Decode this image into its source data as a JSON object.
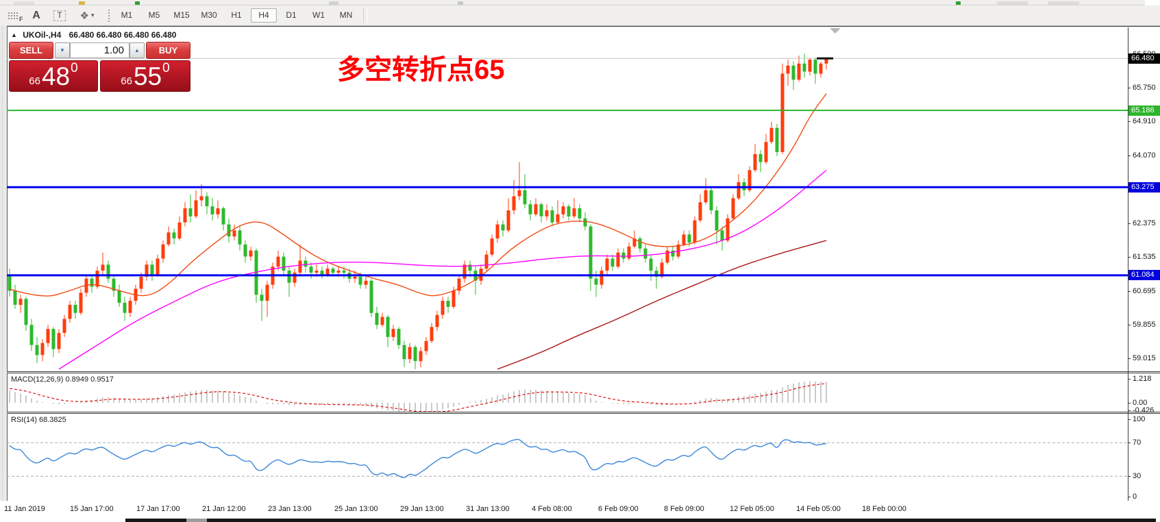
{
  "toolbar": {
    "icons": [
      {
        "name": "indicator-grid-icon",
        "glyph": "F"
      },
      {
        "name": "text-label-icon",
        "glyph": "A"
      },
      {
        "name": "text-box-icon",
        "glyph": "T"
      },
      {
        "name": "shapes-icon",
        "glyph": "❖",
        "caret": "▾"
      }
    ],
    "timeframes": [
      "M1",
      "M5",
      "M15",
      "M30",
      "H1",
      "H4",
      "D1",
      "W1",
      "MN"
    ],
    "selected_timeframe": "H4"
  },
  "header": {
    "collapse_arrow": "▲",
    "symbol_text": "UKOil-,H4",
    "ohlc_text": "66.480 66.480 66.480 66.480"
  },
  "trade_panel": {
    "sell_label": "SELL",
    "buy_label": "BUY",
    "volume": "1.00",
    "spin_down": "▼",
    "spin_up": "▲",
    "sell_price": {
      "small": "66",
      "big": "48",
      "sup": "0"
    },
    "buy_price": {
      "small": "66",
      "big": "55",
      "sup": "0"
    }
  },
  "annotation": {
    "text": "多空转折点65",
    "color": "#fe0000"
  },
  "price_axis": {
    "range": {
      "top": 67.25,
      "bottom": 58.68
    },
    "ticks": [
      {
        "text": "66.590",
        "value": 66.59
      },
      {
        "text": "65.750",
        "value": 65.75
      },
      {
        "text": "64.910",
        "value": 64.91
      },
      {
        "text": "64.070",
        "value": 64.07
      },
      {
        "text": "62.375",
        "value": 62.375
      },
      {
        "text": "61.535",
        "value": 61.535
      },
      {
        "text": "60.695",
        "value": 60.695
      },
      {
        "text": "59.855",
        "value": 59.855
      },
      {
        "text": "59.015",
        "value": 59.015
      }
    ],
    "badges": [
      {
        "text": "66.480",
        "value": 66.48,
        "bg": "#000000"
      },
      {
        "text": "65.186",
        "value": 65.186,
        "bg": "#2db52d"
      },
      {
        "text": "63.275",
        "value": 63.275,
        "bg": "#0000dd"
      },
      {
        "text": "61.084",
        "value": 61.084,
        "bg": "#0000dd"
      }
    ]
  },
  "macd_panel": {
    "label": "MACD(12,26,9) 0.8949 0.9517",
    "axis": [
      {
        "text": "1.218",
        "value": 1.218
      },
      {
        "text": "0.00",
        "value": 0
      },
      {
        "text": "-0.426",
        "value": -0.426
      }
    ]
  },
  "rsi_panel": {
    "label": "RSI(14) 68.3825",
    "axis": [
      {
        "text": "100",
        "value": 100
      },
      {
        "text": "70",
        "value": 70
      },
      {
        "text": "30",
        "value": 30
      },
      {
        "text": "0",
        "value": 0
      }
    ],
    "dashed_levels": [
      70,
      30
    ]
  },
  "time_axis": {
    "labels": [
      "11 Jan 2019",
      "15 Jan 17:00",
      "17 Jan 17:00",
      "21 Jan 12:00",
      "23 Jan 13:00",
      "25 Jan 13:00",
      "29 Jan 13:00",
      "31 Jan 13:00",
      "4 Feb 08:00",
      "6 Feb 09:00",
      "8 Feb 09:00",
      "12 Feb 05:00",
      "14 Feb 05:00",
      "18 Feb 00:00"
    ]
  },
  "chart_data": {
    "type": "candlestick",
    "title": "UKOil- H4",
    "symbol": "UKOil-",
    "timeframe": "H4",
    "up_color": "#ff3d0d",
    "down_color": "#2db92d",
    "current_price": 66.48,
    "ylim": [
      58.68,
      67.25
    ],
    "grid": false,
    "candles": [
      [
        61.1,
        61.25,
        60.55,
        60.7
      ],
      [
        60.7,
        60.85,
        60.25,
        60.35
      ],
      [
        60.35,
        60.6,
        60.15,
        60.5
      ],
      [
        60.5,
        60.55,
        59.7,
        59.85
      ],
      [
        59.85,
        60.0,
        59.2,
        59.35
      ],
      [
        59.35,
        59.55,
        58.9,
        59.1
      ],
      [
        59.1,
        59.5,
        58.95,
        59.4
      ],
      [
        59.4,
        59.85,
        59.3,
        59.75
      ],
      [
        59.75,
        59.8,
        59.05,
        59.25
      ],
      [
        59.25,
        59.75,
        59.15,
        59.65
      ],
      [
        59.65,
        60.1,
        59.55,
        60.0
      ],
      [
        60.0,
        60.45,
        59.9,
        60.35
      ],
      [
        60.35,
        60.45,
        60.0,
        60.15
      ],
      [
        60.15,
        60.75,
        60.1,
        60.65
      ],
      [
        60.65,
        61.1,
        60.55,
        61.0
      ],
      [
        61.0,
        61.1,
        60.65,
        60.8
      ],
      [
        60.8,
        61.3,
        60.75,
        61.2
      ],
      [
        61.2,
        61.65,
        61.1,
        61.35
      ],
      [
        61.35,
        61.45,
        60.9,
        61.0
      ],
      [
        61.0,
        61.1,
        60.55,
        60.7
      ],
      [
        60.7,
        60.85,
        60.3,
        60.4
      ],
      [
        60.4,
        60.55,
        59.95,
        60.15
      ],
      [
        60.15,
        60.55,
        60.05,
        60.45
      ],
      [
        60.45,
        60.85,
        60.35,
        60.75
      ],
      [
        60.75,
        61.15,
        60.65,
        61.05
      ],
      [
        61.05,
        61.45,
        60.95,
        61.35
      ],
      [
        61.35,
        61.45,
        60.95,
        61.1
      ],
      [
        61.1,
        61.6,
        61.05,
        61.5
      ],
      [
        61.5,
        61.95,
        61.4,
        61.85
      ],
      [
        61.85,
        62.3,
        61.8,
        62.15
      ],
      [
        62.15,
        62.25,
        61.85,
        62.0
      ],
      [
        62.0,
        62.55,
        61.95,
        62.4
      ],
      [
        62.4,
        62.9,
        62.3,
        62.75
      ],
      [
        62.75,
        63.1,
        62.4,
        62.55
      ],
      [
        62.55,
        63.2,
        62.5,
        62.95
      ],
      [
        62.95,
        63.35,
        62.8,
        63.05
      ],
      [
        63.05,
        63.15,
        62.6,
        62.8
      ],
      [
        62.8,
        63.0,
        62.45,
        62.6
      ],
      [
        62.6,
        62.95,
        62.5,
        62.75
      ],
      [
        62.75,
        62.8,
        62.2,
        62.35
      ],
      [
        62.35,
        62.5,
        61.9,
        62.05
      ],
      [
        62.05,
        62.35,
        61.95,
        62.2
      ],
      [
        62.2,
        62.3,
        61.7,
        61.85
      ],
      [
        61.85,
        61.95,
        61.4,
        61.55
      ],
      [
        61.55,
        61.8,
        61.45,
        61.7
      ],
      [
        61.7,
        61.75,
        60.4,
        60.6
      ],
      [
        60.6,
        60.75,
        59.95,
        60.45
      ],
      [
        60.45,
        60.95,
        60.05,
        60.85
      ],
      [
        60.85,
        61.4,
        60.75,
        61.3
      ],
      [
        61.3,
        61.7,
        61.2,
        61.55
      ],
      [
        61.55,
        61.65,
        61.1,
        61.2
      ],
      [
        61.2,
        61.3,
        60.55,
        60.9
      ],
      [
        60.9,
        61.25,
        60.8,
        61.15
      ],
      [
        61.15,
        61.85,
        61.1,
        61.45
      ],
      [
        61.45,
        61.55,
        61.15,
        61.3
      ],
      [
        61.3,
        61.4,
        61.0,
        61.15
      ],
      [
        61.15,
        61.35,
        61.05,
        61.2
      ],
      [
        61.2,
        61.3,
        61.0,
        61.1
      ],
      [
        61.1,
        61.35,
        61.05,
        61.25
      ],
      [
        61.25,
        61.3,
        61.05,
        61.15
      ],
      [
        61.15,
        61.3,
        61.05,
        61.2
      ],
      [
        61.2,
        61.3,
        61.0,
        61.15
      ],
      [
        61.15,
        61.25,
        60.9,
        61.0
      ],
      [
        61.0,
        61.2,
        60.9,
        61.05
      ],
      [
        61.05,
        61.15,
        60.75,
        60.85
      ],
      [
        60.85,
        61.05,
        60.75,
        60.95
      ],
      [
        60.95,
        61.0,
        60.05,
        60.15
      ],
      [
        60.15,
        60.3,
        59.75,
        59.85
      ],
      [
        59.85,
        60.15,
        59.8,
        60.05
      ],
      [
        60.05,
        60.1,
        59.3,
        59.55
      ],
      [
        59.55,
        59.85,
        59.45,
        59.75
      ],
      [
        59.75,
        59.8,
        59.25,
        59.35
      ],
      [
        59.35,
        59.45,
        58.8,
        59.0
      ],
      [
        59.0,
        59.4,
        58.9,
        59.3
      ],
      [
        59.3,
        59.35,
        58.75,
        58.95
      ],
      [
        58.95,
        59.3,
        58.8,
        59.2
      ],
      [
        59.2,
        59.55,
        59.1,
        59.45
      ],
      [
        59.45,
        59.9,
        59.4,
        59.8
      ],
      [
        59.8,
        60.2,
        59.7,
        60.1
      ],
      [
        60.1,
        60.55,
        60.0,
        60.45
      ],
      [
        60.45,
        60.55,
        60.15,
        60.3
      ],
      [
        60.3,
        60.8,
        60.25,
        60.7
      ],
      [
        60.7,
        61.1,
        60.6,
        61.0
      ],
      [
        61.0,
        61.45,
        60.9,
        61.35
      ],
      [
        61.35,
        61.45,
        61.05,
        61.2
      ],
      [
        61.2,
        61.3,
        60.6,
        60.95
      ],
      [
        60.95,
        61.35,
        60.85,
        61.25
      ],
      [
        61.25,
        61.7,
        61.2,
        61.6
      ],
      [
        61.6,
        62.1,
        61.55,
        62.0
      ],
      [
        62.0,
        62.45,
        61.9,
        62.35
      ],
      [
        62.35,
        62.45,
        62.05,
        62.2
      ],
      [
        62.2,
        63.0,
        62.15,
        62.7
      ],
      [
        62.7,
        63.45,
        62.6,
        63.05
      ],
      [
        63.05,
        63.9,
        62.95,
        63.2
      ],
      [
        63.2,
        63.6,
        62.75,
        62.85
      ],
      [
        62.85,
        62.95,
        62.45,
        62.6
      ],
      [
        62.6,
        63.0,
        62.55,
        62.85
      ],
      [
        62.85,
        62.9,
        62.4,
        62.55
      ],
      [
        62.55,
        62.85,
        62.45,
        62.7
      ],
      [
        62.7,
        62.8,
        62.3,
        62.4
      ],
      [
        62.4,
        62.95,
        62.35,
        62.6
      ],
      [
        62.6,
        62.9,
        62.5,
        62.8
      ],
      [
        62.8,
        62.85,
        62.45,
        62.55
      ],
      [
        62.55,
        63.0,
        62.5,
        62.75
      ],
      [
        62.75,
        62.85,
        62.4,
        62.5
      ],
      [
        62.5,
        62.65,
        62.2,
        62.3
      ],
      [
        62.3,
        62.35,
        60.7,
        61.0
      ],
      [
        61.0,
        61.2,
        60.55,
        60.85
      ],
      [
        60.85,
        61.3,
        60.75,
        61.2
      ],
      [
        61.2,
        61.6,
        61.1,
        61.5
      ],
      [
        61.5,
        61.6,
        61.2,
        61.3
      ],
      [
        61.3,
        61.75,
        61.25,
        61.65
      ],
      [
        61.65,
        61.75,
        61.4,
        61.5
      ],
      [
        61.5,
        61.9,
        61.45,
        61.8
      ],
      [
        61.8,
        62.2,
        61.75,
        62.0
      ],
      [
        62.0,
        62.05,
        61.65,
        61.75
      ],
      [
        61.75,
        61.85,
        61.4,
        61.5
      ],
      [
        61.5,
        61.6,
        60.95,
        61.2
      ],
      [
        61.2,
        61.3,
        60.75,
        61.05
      ],
      [
        61.05,
        61.5,
        61.0,
        61.4
      ],
      [
        61.4,
        61.8,
        61.35,
        61.7
      ],
      [
        61.7,
        61.8,
        61.45,
        61.55
      ],
      [
        61.55,
        61.95,
        61.5,
        61.85
      ],
      [
        61.85,
        62.2,
        61.8,
        62.1
      ],
      [
        62.1,
        62.2,
        61.8,
        61.9
      ],
      [
        61.9,
        62.55,
        61.85,
        62.45
      ],
      [
        62.45,
        63.1,
        62.4,
        62.9
      ],
      [
        62.9,
        63.5,
        62.85,
        63.2
      ],
      [
        63.2,
        63.3,
        62.6,
        62.7
      ],
      [
        62.7,
        62.8,
        61.85,
        62.2
      ],
      [
        62.2,
        62.3,
        61.7,
        61.95
      ],
      [
        61.95,
        62.6,
        61.9,
        62.5
      ],
      [
        62.5,
        63.1,
        62.45,
        63.0
      ],
      [
        63.0,
        63.6,
        62.95,
        63.4
      ],
      [
        63.4,
        63.5,
        63.05,
        63.2
      ],
      [
        63.2,
        63.8,
        63.15,
        63.7
      ],
      [
        63.7,
        64.35,
        63.65,
        64.1
      ],
      [
        64.1,
        64.2,
        63.65,
        63.9
      ],
      [
        63.9,
        64.6,
        63.85,
        64.4
      ],
      [
        64.4,
        64.9,
        64.35,
        64.75
      ],
      [
        64.75,
        64.85,
        64.05,
        64.15
      ],
      [
        64.15,
        66.35,
        64.1,
        66.1
      ],
      [
        66.1,
        66.45,
        65.8,
        66.3
      ],
      [
        66.3,
        66.4,
        65.7,
        65.95
      ],
      [
        65.95,
        66.55,
        65.9,
        66.35
      ],
      [
        66.35,
        66.6,
        66.0,
        66.15
      ],
      [
        66.15,
        66.5,
        66.05,
        66.45
      ],
      [
        66.45,
        66.5,
        65.85,
        66.1
      ],
      [
        66.1,
        66.4,
        66.0,
        66.35
      ],
      [
        66.35,
        66.5,
        66.2,
        66.48
      ]
    ],
    "hlines": [
      {
        "price": 65.186,
        "color": "#2db52d",
        "width": 2
      },
      {
        "price": 63.275,
        "color": "#0000ee",
        "width": 3
      },
      {
        "price": 61.084,
        "color": "#0000ee",
        "width": 3
      }
    ],
    "moving_averages": [
      {
        "name": "fast-ma",
        "color": "#f04a12",
        "width": 1.4,
        "points": [
          [
            0,
            60.74
          ],
          [
            6,
            60.5
          ],
          [
            11,
            60.7
          ],
          [
            15,
            60.9
          ],
          [
            20,
            60.7
          ],
          [
            25,
            60.52
          ],
          [
            29,
            60.85
          ],
          [
            33,
            61.4
          ],
          [
            38,
            61.95
          ],
          [
            42,
            62.35
          ],
          [
            46,
            62.45
          ],
          [
            50,
            62.1
          ],
          [
            54,
            61.7
          ],
          [
            58,
            61.4
          ],
          [
            63,
            61.15
          ],
          [
            67,
            60.98
          ],
          [
            71,
            60.85
          ],
          [
            75,
            60.62
          ],
          [
            78,
            60.55
          ],
          [
            83,
            60.8
          ],
          [
            87,
            61.15
          ],
          [
            91,
            61.7
          ],
          [
            96,
            62.15
          ],
          [
            100,
            62.4
          ],
          [
            105,
            62.45
          ],
          [
            109,
            62.3
          ],
          [
            113,
            62.05
          ],
          [
            116,
            61.85
          ],
          [
            120,
            61.78
          ],
          [
            124,
            61.85
          ],
          [
            128,
            62.05
          ],
          [
            131,
            62.35
          ],
          [
            135,
            62.8
          ],
          [
            139,
            63.45
          ],
          [
            143,
            64.25
          ],
          [
            146,
            65.05
          ],
          [
            149,
            65.6
          ]
        ]
      },
      {
        "name": "mid-ma",
        "color": "#ff00ff",
        "width": 1.4,
        "points": [
          [
            9,
            58.75
          ],
          [
            16,
            59.35
          ],
          [
            23,
            59.95
          ],
          [
            31,
            60.5
          ],
          [
            38,
            60.95
          ],
          [
            46,
            61.2
          ],
          [
            53,
            61.35
          ],
          [
            61,
            61.42
          ],
          [
            68,
            61.4
          ],
          [
            76,
            61.32
          ],
          [
            83,
            61.3
          ],
          [
            91,
            61.38
          ],
          [
            98,
            61.5
          ],
          [
            106,
            61.58
          ],
          [
            113,
            61.55
          ],
          [
            118,
            61.6
          ],
          [
            123,
            61.7
          ],
          [
            128,
            61.85
          ],
          [
            133,
            62.1
          ],
          [
            138,
            62.5
          ],
          [
            143,
            63.0
          ],
          [
            149,
            63.7
          ]
        ]
      },
      {
        "name": "slow-ma",
        "color": "#aa1414",
        "width": 1.4,
        "points": [
          [
            89,
            58.75
          ],
          [
            96,
            59.1
          ],
          [
            103,
            59.55
          ],
          [
            111,
            60.0
          ],
          [
            118,
            60.45
          ],
          [
            126,
            60.9
          ],
          [
            133,
            61.3
          ],
          [
            141,
            61.65
          ],
          [
            149,
            61.95
          ]
        ]
      }
    ],
    "indicators": {
      "macd": {
        "fast": 12,
        "slow": 26,
        "signal": 9,
        "current": [
          0.8949,
          0.9517
        ],
        "seed": {
          "fast": 60.95,
          "slow": 60.25,
          "signal": 0.75
        },
        "hist_color": "#bdbdbd",
        "signal_color": "#e01010",
        "axis_range": [
          -0.426,
          1.218
        ]
      },
      "rsi": {
        "period": 14,
        "current": 68.3825,
        "seed": {
          "gain": 0.2,
          "loss": 0.1
        },
        "color": "#3b87d9",
        "levels": [
          70,
          30
        ],
        "range": [
          0,
          100
        ]
      }
    }
  }
}
